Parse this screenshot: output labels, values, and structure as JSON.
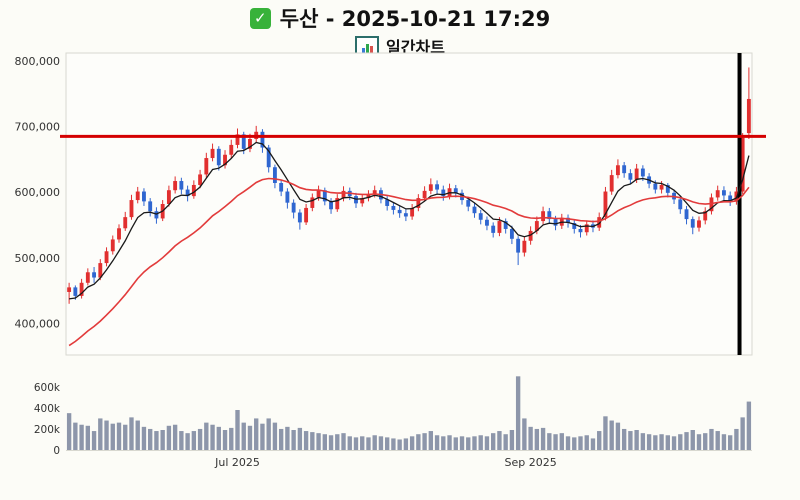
{
  "header": {
    "check_glyph": "✓",
    "title": "두산 - 2025-10-21 17:29",
    "subtitle": "일간차트"
  },
  "chart_data": {
    "type": "candlestick",
    "title": "두산 - 2025-10-21 17:29",
    "subtitle": "일간차트",
    "legend_position": "none",
    "grid": false,
    "price_unit": "KRW",
    "y_axis": {
      "min": 352000,
      "max": 812000,
      "ticks": [
        {
          "value": 400000,
          "label": "400,000"
        },
        {
          "value": 500000,
          "label": "500,000"
        },
        {
          "value": 600000,
          "label": "600,000"
        },
        {
          "value": 700000,
          "label": "700,000"
        },
        {
          "value": 800000,
          "label": "800,000"
        }
      ]
    },
    "volume_axis": {
      "max": 760000,
      "ticks": [
        {
          "value": 0,
          "label": "0"
        },
        {
          "value": 200000,
          "label": "200k"
        },
        {
          "value": 400000,
          "label": "400k"
        },
        {
          "value": 600000,
          "label": "600k"
        }
      ]
    },
    "x_ticks": [
      {
        "index": 27,
        "label": "Jul 2025"
      },
      {
        "index": 74,
        "label": "Sep 2025"
      }
    ],
    "reference_line": {
      "value": 685000,
      "color": "#d40000",
      "width": 3
    },
    "vline": {
      "after_index": 107,
      "color": "#000000",
      "width": 4
    },
    "overlays": [
      {
        "name": "ma-fast",
        "color": "#1a1a1a",
        "width": 1.3,
        "alpha": 0.3,
        "seed": 430000
      },
      {
        "name": "ma-slow",
        "color": "#e23b3b",
        "width": 1.6,
        "alpha": 0.085,
        "seed": 358000
      }
    ],
    "colors": {
      "up": "#e12f2f",
      "down": "#2f66d0",
      "volume": "#8d96aa",
      "plot_bg": "#fdfdfa",
      "border": "#d8d8d0",
      "text": "#333333"
    },
    "candles_format": [
      "open",
      "high",
      "low",
      "close",
      "volume"
    ],
    "candles": [
      [
        448000,
        462000,
        430000,
        455000,
        350000
      ],
      [
        455000,
        458000,
        436000,
        442000,
        260000
      ],
      [
        442000,
        468000,
        438000,
        462000,
        240000
      ],
      [
        462000,
        484000,
        458000,
        478000,
        230000
      ],
      [
        478000,
        486000,
        462000,
        470000,
        180000
      ],
      [
        470000,
        498000,
        466000,
        492000,
        300000
      ],
      [
        492000,
        516000,
        487000,
        510000,
        280000
      ],
      [
        510000,
        534000,
        505000,
        528000,
        250000
      ],
      [
        528000,
        551000,
        523000,
        545000,
        260000
      ],
      [
        545000,
        570000,
        541000,
        562000,
        240000
      ],
      [
        562000,
        596000,
        558000,
        588000,
        310000
      ],
      [
        588000,
        608000,
        583000,
        601000,
        280000
      ],
      [
        601000,
        606000,
        579000,
        586000,
        220000
      ],
      [
        586000,
        591000,
        563000,
        571000,
        200000
      ],
      [
        571000,
        577000,
        552000,
        560000,
        180000
      ],
      [
        560000,
        588000,
        556000,
        582000,
        190000
      ],
      [
        582000,
        610000,
        578000,
        603000,
        230000
      ],
      [
        603000,
        624000,
        598000,
        617000,
        240000
      ],
      [
        617000,
        622000,
        597000,
        604000,
        180000
      ],
      [
        604000,
        610000,
        586000,
        594000,
        160000
      ],
      [
        594000,
        618000,
        590000,
        611000,
        180000
      ],
      [
        611000,
        634000,
        606000,
        627000,
        200000
      ],
      [
        627000,
        660000,
        622000,
        652000,
        260000
      ],
      [
        652000,
        674000,
        647000,
        666000,
        240000
      ],
      [
        666000,
        670000,
        633000,
        641000,
        220000
      ],
      [
        641000,
        664000,
        636000,
        657000,
        190000
      ],
      [
        657000,
        680000,
        652000,
        672000,
        210000
      ],
      [
        672000,
        697000,
        667000,
        688000,
        380000
      ],
      [
        688000,
        692000,
        658000,
        666000,
        260000
      ],
      [
        666000,
        689000,
        661000,
        681000,
        230000
      ],
      [
        681000,
        701000,
        676000,
        692000,
        300000
      ],
      [
        692000,
        696000,
        660000,
        668000,
        250000
      ],
      [
        668000,
        672000,
        630000,
        638000,
        300000
      ],
      [
        638000,
        642000,
        606000,
        614000,
        260000
      ],
      [
        614000,
        619000,
        594000,
        601000,
        200000
      ],
      [
        601000,
        606000,
        575000,
        584000,
        220000
      ],
      [
        584000,
        589000,
        560000,
        569000,
        190000
      ],
      [
        569000,
        574000,
        543000,
        554000,
        210000
      ],
      [
        554000,
        582000,
        550000,
        576000,
        180000
      ],
      [
        576000,
        598000,
        571000,
        592000,
        170000
      ],
      [
        592000,
        610000,
        587000,
        603000,
        160000
      ],
      [
        603000,
        607000,
        580000,
        586000,
        150000
      ],
      [
        586000,
        591000,
        567000,
        574000,
        140000
      ],
      [
        574000,
        597000,
        570000,
        591000,
        150000
      ],
      [
        591000,
        609000,
        586000,
        602000,
        160000
      ],
      [
        602000,
        607000,
        588000,
        594000,
        130000
      ],
      [
        594000,
        599000,
        576000,
        583000,
        120000
      ],
      [
        583000,
        597000,
        578000,
        591000,
        130000
      ],
      [
        591000,
        603000,
        586000,
        597000,
        120000
      ],
      [
        597000,
        610000,
        592000,
        603000,
        140000
      ],
      [
        603000,
        607000,
        583000,
        589000,
        130000
      ],
      [
        589000,
        594000,
        572000,
        579000,
        120000
      ],
      [
        579000,
        585000,
        566000,
        573000,
        110000
      ],
      [
        573000,
        579000,
        561000,
        568000,
        100000
      ],
      [
        568000,
        574000,
        556000,
        563000,
        110000
      ],
      [
        563000,
        582000,
        558000,
        576000,
        130000
      ],
      [
        576000,
        597000,
        571000,
        591000,
        150000
      ],
      [
        591000,
        609000,
        586000,
        602000,
        160000
      ],
      [
        602000,
        621000,
        597000,
        612000,
        180000
      ],
      [
        612000,
        618000,
        598000,
        604000,
        140000
      ],
      [
        604000,
        610000,
        587000,
        594000,
        130000
      ],
      [
        594000,
        613000,
        589000,
        606000,
        140000
      ],
      [
        606000,
        611000,
        592000,
        599000,
        120000
      ],
      [
        599000,
        604000,
        581000,
        588000,
        130000
      ],
      [
        588000,
        593000,
        571000,
        578000,
        120000
      ],
      [
        578000,
        583000,
        561000,
        568000,
        130000
      ],
      [
        568000,
        573000,
        551000,
        558000,
        140000
      ],
      [
        558000,
        563000,
        542000,
        549000,
        130000
      ],
      [
        549000,
        554000,
        531000,
        538000,
        160000
      ],
      [
        538000,
        562000,
        533000,
        556000,
        180000
      ],
      [
        556000,
        560000,
        537000,
        544000,
        150000
      ],
      [
        544000,
        549000,
        521000,
        529000,
        190000
      ],
      [
        529000,
        533000,
        489000,
        508000,
        700000
      ],
      [
        508000,
        532000,
        502000,
        526000,
        300000
      ],
      [
        526000,
        548000,
        520000,
        541000,
        220000
      ],
      [
        541000,
        563000,
        536000,
        556000,
        200000
      ],
      [
        556000,
        578000,
        551000,
        571000,
        210000
      ],
      [
        571000,
        576000,
        552000,
        559000,
        160000
      ],
      [
        559000,
        564000,
        542000,
        549000,
        150000
      ],
      [
        549000,
        567000,
        544000,
        561000,
        160000
      ],
      [
        561000,
        566000,
        546000,
        553000,
        130000
      ],
      [
        553000,
        558000,
        537000,
        544000,
        120000
      ],
      [
        544000,
        550000,
        531000,
        539000,
        130000
      ],
      [
        539000,
        557000,
        534000,
        551000,
        140000
      ],
      [
        551000,
        557000,
        539000,
        546000,
        110000
      ],
      [
        546000,
        569000,
        541000,
        562000,
        180000
      ],
      [
        562000,
        608000,
        557000,
        601000,
        320000
      ],
      [
        601000,
        634000,
        596000,
        626000,
        280000
      ],
      [
        626000,
        650000,
        621000,
        641000,
        260000
      ],
      [
        641000,
        646000,
        622000,
        629000,
        200000
      ],
      [
        629000,
        635000,
        612000,
        619000,
        180000
      ],
      [
        619000,
        643000,
        614000,
        636000,
        190000
      ],
      [
        636000,
        641000,
        617000,
        624000,
        160000
      ],
      [
        624000,
        629000,
        606000,
        613000,
        150000
      ],
      [
        613000,
        618000,
        598000,
        604000,
        140000
      ],
      [
        604000,
        617000,
        598000,
        611000,
        150000
      ],
      [
        611000,
        614000,
        592000,
        599000,
        140000
      ],
      [
        599000,
        604000,
        582000,
        589000,
        130000
      ],
      [
        589000,
        594000,
        567000,
        574000,
        150000
      ],
      [
        574000,
        579000,
        551000,
        559000,
        170000
      ],
      [
        559000,
        563000,
        536000,
        546000,
        190000
      ],
      [
        546000,
        563000,
        540000,
        557000,
        150000
      ],
      [
        557000,
        577000,
        551000,
        571000,
        160000
      ],
      [
        571000,
        598000,
        566000,
        592000,
        200000
      ],
      [
        592000,
        610000,
        587000,
        603000,
        180000
      ],
      [
        603000,
        609000,
        588000,
        595000,
        150000
      ],
      [
        595000,
        601000,
        579000,
        586000,
        140000
      ],
      [
        586000,
        608000,
        581000,
        601000,
        200000
      ],
      [
        601000,
        690000,
        597000,
        683000,
        310000
      ],
      [
        690000,
        790000,
        681000,
        742000,
        460000
      ]
    ]
  }
}
